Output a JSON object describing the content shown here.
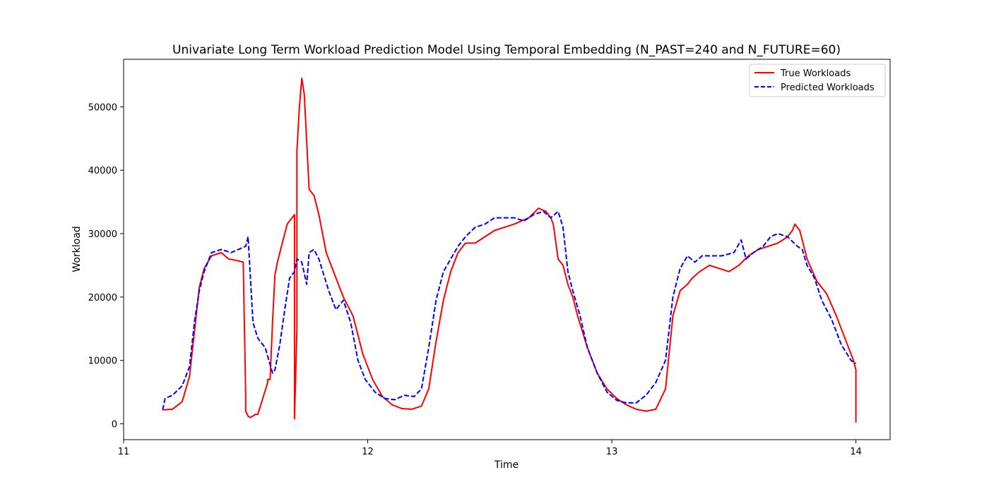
{
  "chart_data": {
    "type": "line",
    "title": "Univariate Long Term Workload Prediction Model Using Temporal Embedding (N_PAST=240 and N_FUTURE=60)",
    "xlabel": "Time",
    "ylabel": "Workload",
    "xlim": [
      11.0,
      14.14
    ],
    "ylim": [
      -2500,
      57500
    ],
    "xticks": [
      11,
      12,
      13,
      14
    ],
    "xtick_labels": [
      "11",
      "12",
      "13",
      "14"
    ],
    "yticks": [
      0,
      10000,
      20000,
      30000,
      40000,
      50000
    ],
    "ytick_labels": [
      "0",
      "10000",
      "20000",
      "30000",
      "40000",
      "50000"
    ],
    "grid": false,
    "legend_position": "top-right",
    "series": [
      {
        "name": "True Workloads",
        "color": "#ff0000",
        "style": "solid",
        "x": [
          11.16,
          11.2,
          11.24,
          11.27,
          11.29,
          11.31,
          11.33,
          11.36,
          11.4,
          11.43,
          11.46,
          11.49,
          11.5,
          11.5,
          11.51,
          11.52,
          11.54,
          11.55,
          11.59,
          11.59,
          11.6,
          11.61,
          11.62,
          11.63,
          11.65,
          11.67,
          11.7,
          11.7,
          11.71,
          11.71,
          11.72,
          11.73,
          11.74,
          11.76,
          11.78,
          11.8,
          11.83,
          11.87,
          11.9,
          11.94,
          11.98,
          12.02,
          12.06,
          12.1,
          12.14,
          12.18,
          12.22,
          12.25,
          12.28,
          12.31,
          12.34,
          12.37,
          12.4,
          12.44,
          12.48,
          12.52,
          12.56,
          12.6,
          12.63,
          12.66,
          12.7,
          12.73,
          12.75,
          12.76,
          12.78,
          12.8,
          12.82,
          12.84,
          12.86,
          12.9,
          12.94,
          12.98,
          13.02,
          13.06,
          13.1,
          13.14,
          13.18,
          13.22,
          13.25,
          13.28,
          13.31,
          13.33,
          13.36,
          13.4,
          13.44,
          13.48,
          13.52,
          13.56,
          13.6,
          13.64,
          13.68,
          13.72,
          13.74,
          13.75,
          13.77,
          13.8,
          13.84,
          13.88,
          13.92,
          13.96,
          13.99,
          14.0,
          14.0
        ],
        "y": [
          2200,
          2300,
          3500,
          7500,
          14500,
          21500,
          24500,
          26500,
          27000,
          26000,
          25800,
          25500,
          4500,
          2000,
          1200,
          1000,
          1500,
          1500,
          6500,
          7000,
          7000,
          16000,
          23500,
          25500,
          28500,
          31500,
          33000,
          800,
          15000,
          43000,
          50000,
          54500,
          52000,
          37000,
          36000,
          33000,
          27000,
          23000,
          20000,
          17000,
          11000,
          7000,
          4300,
          3000,
          2400,
          2300,
          2800,
          5500,
          13000,
          19500,
          24000,
          27000,
          28500,
          28500,
          29500,
          30500,
          31000,
          31500,
          32000,
          32500,
          34000,
          33500,
          32500,
          31500,
          26000,
          25000,
          22000,
          20000,
          17000,
          12000,
          8000,
          5500,
          4000,
          3000,
          2300,
          2000,
          2300,
          5500,
          17000,
          21000,
          22000,
          23000,
          24000,
          25000,
          24500,
          24000,
          25000,
          26500,
          27500,
          28000,
          28500,
          29500,
          30500,
          31500,
          30500,
          26000,
          22500,
          20500,
          17000,
          13000,
          10000,
          8500,
          200
        ]
      },
      {
        "name": "Predicted Workloads",
        "color": "#0000ff",
        "style": "dashed",
        "x": [
          11.16,
          11.17,
          11.2,
          11.24,
          11.27,
          11.29,
          11.31,
          11.33,
          11.36,
          11.4,
          11.44,
          11.47,
          11.5,
          11.51,
          11.53,
          11.55,
          11.56,
          11.58,
          11.61,
          11.62,
          11.64,
          11.66,
          11.68,
          11.7,
          11.71,
          11.73,
          11.75,
          11.76,
          11.78,
          11.8,
          11.84,
          11.87,
          11.9,
          11.93,
          11.96,
          11.99,
          12.03,
          12.07,
          12.11,
          12.15,
          12.19,
          12.22,
          12.25,
          12.28,
          12.31,
          12.34,
          12.37,
          12.4,
          12.44,
          12.48,
          12.52,
          12.56,
          12.6,
          12.64,
          12.68,
          12.72,
          12.75,
          12.78,
          12.8,
          12.82,
          12.84,
          12.87,
          12.9,
          12.94,
          12.98,
          13.02,
          13.06,
          13.1,
          13.14,
          13.18,
          13.22,
          13.25,
          13.28,
          13.31,
          13.34,
          13.37,
          13.4,
          13.45,
          13.5,
          13.53,
          13.55,
          13.58,
          13.62,
          13.65,
          13.68,
          13.72,
          13.76,
          13.78,
          13.8,
          13.83,
          13.86,
          13.9,
          13.94,
          13.98,
          14.0
        ],
        "y": [
          2200,
          4000,
          4500,
          6000,
          9000,
          16000,
          21000,
          24000,
          27000,
          27500,
          27000,
          27500,
          28000,
          29500,
          16000,
          13500,
          13000,
          12000,
          8000,
          8500,
          12500,
          18000,
          23000,
          24000,
          26000,
          25500,
          22000,
          27000,
          27500,
          26000,
          21000,
          18000,
          19500,
          16000,
          10000,
          7000,
          5000,
          4000,
          3800,
          4500,
          4300,
          5500,
          12000,
          19500,
          24000,
          26000,
          28000,
          29500,
          31000,
          31500,
          32500,
          32500,
          32500,
          32000,
          33000,
          33500,
          32500,
          33500,
          31000,
          24000,
          21000,
          17000,
          12000,
          8000,
          5000,
          3700,
          3300,
          3300,
          4500,
          6500,
          10000,
          20000,
          24500,
          26500,
          25500,
          26500,
          26500,
          26500,
          27000,
          29000,
          26000,
          27000,
          28000,
          29500,
          30000,
          29500,
          28000,
          27500,
          25000,
          23000,
          19500,
          16500,
          12500,
          10000,
          9500
        ]
      }
    ]
  }
}
